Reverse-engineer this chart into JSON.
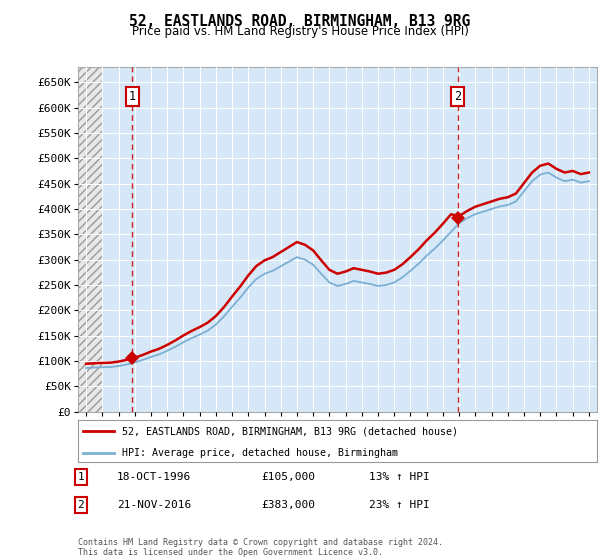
{
  "title1": "52, EASTLANDS ROAD, BIRMINGHAM, B13 9RG",
  "title2": "Price paid vs. HM Land Registry's House Price Index (HPI)",
  "sale1_price": 105000,
  "sale1_label": "18-OCT-1996",
  "sale1_hpi_pct": "13%",
  "sale2_price": 383000,
  "sale2_label": "21-NOV-2016",
  "sale2_hpi_pct": "23%",
  "hpi_line_color": "#7BAFD4",
  "price_line_color": "#CC0000",
  "dot_color": "#CC0000",
  "bg_color": "#D6E8F7",
  "hatch_bg": "#E8E8E8",
  "ylim": [
    0,
    680000
  ],
  "yticks": [
    0,
    50000,
    100000,
    150000,
    200000,
    250000,
    300000,
    350000,
    400000,
    450000,
    500000,
    550000,
    600000,
    650000
  ],
  "legend_label1": "52, EASTLANDS ROAD, BIRMINGHAM, B13 9RG (detached house)",
  "legend_label2": "HPI: Average price, detached house, Birmingham",
  "footnote": "Contains HM Land Registry data © Crown copyright and database right 2024.\nThis data is licensed under the Open Government Licence v3.0.",
  "years_hpi": [
    1994.0,
    1994.5,
    1995.0,
    1995.5,
    1996.0,
    1996.5,
    1997.0,
    1997.5,
    1998.0,
    1998.5,
    1999.0,
    1999.5,
    2000.0,
    2000.5,
    2001.0,
    2001.5,
    2002.0,
    2002.5,
    2003.0,
    2003.5,
    2004.0,
    2004.5,
    2005.0,
    2005.5,
    2006.0,
    2006.5,
    2007.0,
    2007.5,
    2008.0,
    2008.5,
    2009.0,
    2009.5,
    2010.0,
    2010.5,
    2011.0,
    2011.5,
    2012.0,
    2012.5,
    2013.0,
    2013.5,
    2014.0,
    2014.5,
    2015.0,
    2015.5,
    2016.0,
    2016.5,
    2017.0,
    2017.5,
    2018.0,
    2018.5,
    2019.0,
    2019.5,
    2020.0,
    2020.5,
    2021.0,
    2021.5,
    2022.0,
    2022.5,
    2023.0,
    2023.5,
    2024.0,
    2024.5,
    2025.0
  ],
  "hpi_values": [
    86000,
    87000,
    87500,
    88000,
    90000,
    93000,
    97000,
    102000,
    108000,
    113000,
    120000,
    128000,
    137000,
    145000,
    152000,
    160000,
    172000,
    188000,
    207000,
    225000,
    245000,
    262000,
    272000,
    278000,
    287000,
    296000,
    305000,
    300000,
    290000,
    272000,
    255000,
    248000,
    252000,
    258000,
    255000,
    252000,
    248000,
    250000,
    255000,
    265000,
    278000,
    292000,
    308000,
    322000,
    338000,
    355000,
    372000,
    382000,
    390000,
    395000,
    400000,
    405000,
    408000,
    415000,
    435000,
    455000,
    468000,
    472000,
    462000,
    455000,
    458000,
    452000,
    455000
  ]
}
